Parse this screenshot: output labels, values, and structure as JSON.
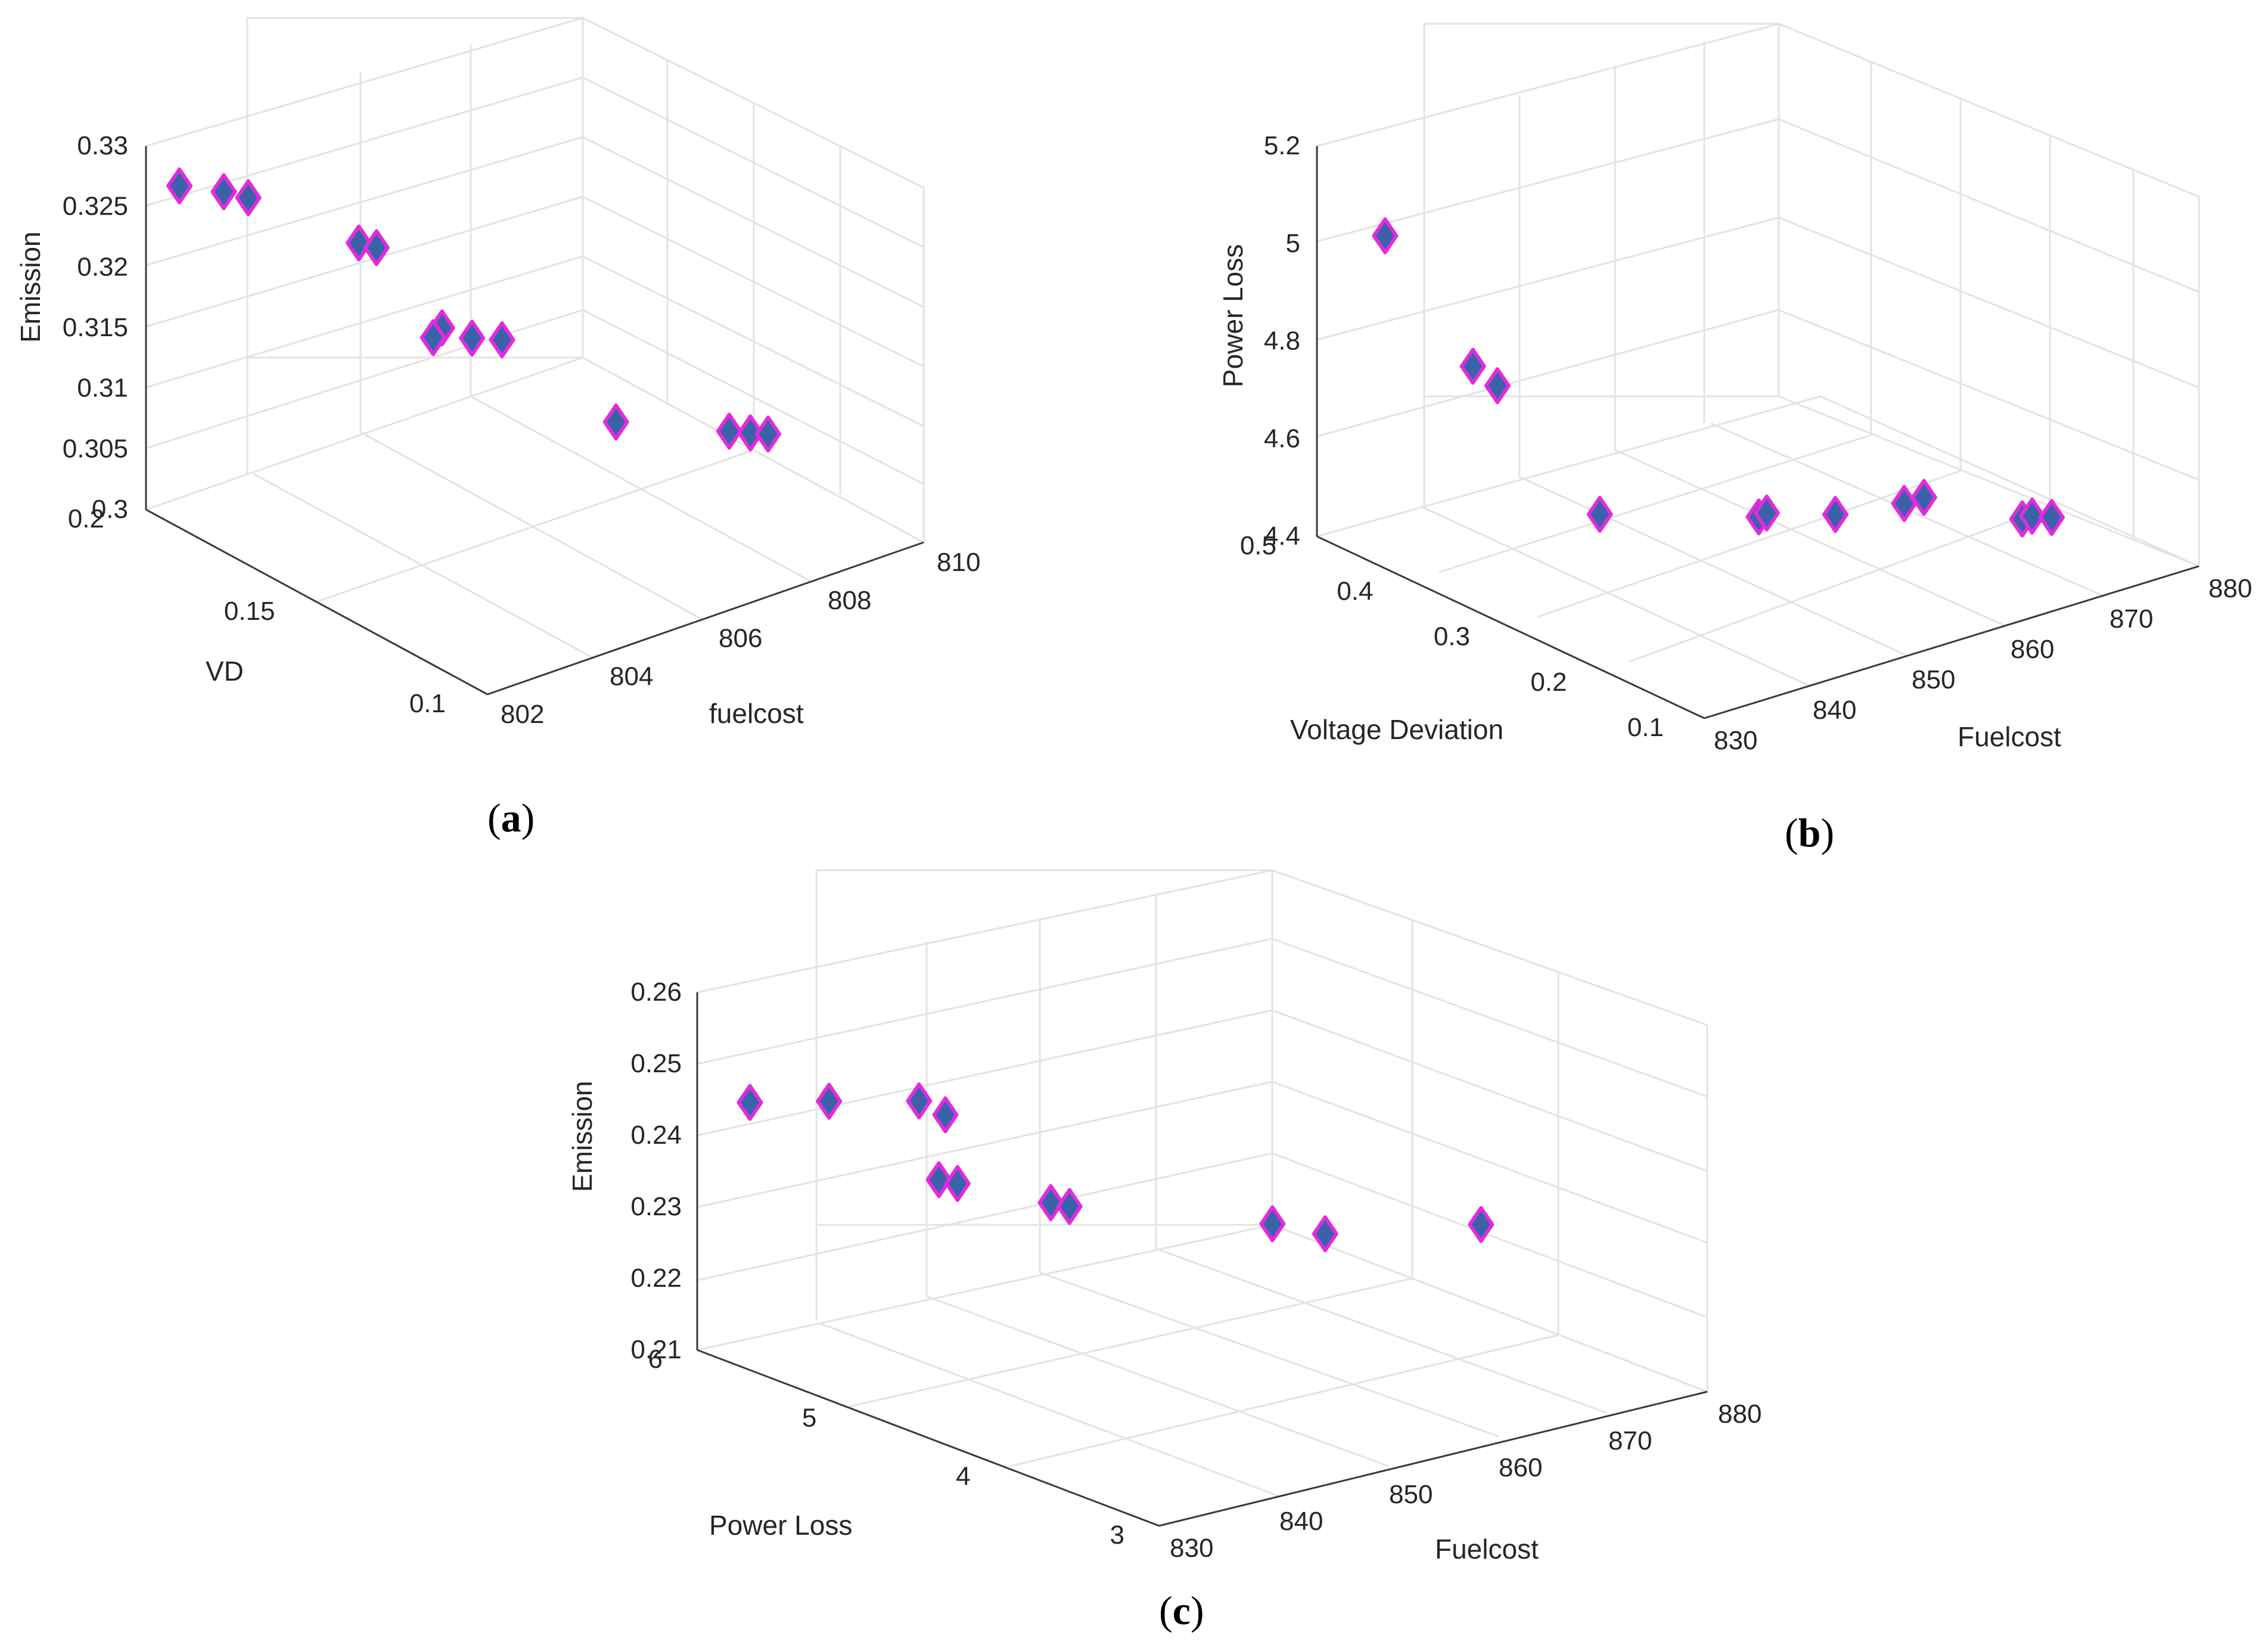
{
  "figure": {
    "marker_fill": "#3a62a8",
    "marker_edge": "#e22bde",
    "grid_color": "#e3e3e3",
    "axis_color": "#3a3a3a"
  },
  "chart_data": [
    {
      "type": "scatter",
      "panel": "a",
      "caption_open": "(",
      "caption_letter": "a",
      "caption_close": ")",
      "xlabel": "fuelcost",
      "ylabel": "VD",
      "zlabel": "Emission",
      "xlim": [
        802,
        810
      ],
      "ylim": [
        0.1,
        0.2
      ],
      "zlim": [
        0.3,
        0.33
      ],
      "x_ticks": [
        "802",
        "804",
        "806",
        "808",
        "810"
      ],
      "y_ticks": [
        "0.1",
        "0.15",
        "0.2"
      ],
      "z_ticks": [
        "0.3",
        "0.305",
        "0.31",
        "0.315",
        "0.32",
        "0.325",
        "0.33"
      ],
      "points": [
        {
          "x": 802.3,
          "y": 0.195,
          "z": 0.327
        },
        {
          "x": 802.8,
          "y": 0.19,
          "z": 0.3265
        },
        {
          "x": 803.0,
          "y": 0.186,
          "z": 0.3263
        },
        {
          "x": 804.4,
          "y": 0.176,
          "z": 0.3219
        },
        {
          "x": 804.6,
          "y": 0.174,
          "z": 0.3215
        },
        {
          "x": 805.3,
          "y": 0.166,
          "z": 0.315
        },
        {
          "x": 805.2,
          "y": 0.167,
          "z": 0.3142
        },
        {
          "x": 805.6,
          "y": 0.162,
          "z": 0.3143
        },
        {
          "x": 805.9,
          "y": 0.158,
          "z": 0.3143
        },
        {
          "x": 806.8,
          "y": 0.139,
          "z": 0.309
        },
        {
          "x": 808.0,
          "y": 0.125,
          "z": 0.3085
        },
        {
          "x": 808.2,
          "y": 0.122,
          "z": 0.3085
        },
        {
          "x": 808.4,
          "y": 0.12,
          "z": 0.3084
        }
      ]
    },
    {
      "type": "scatter",
      "panel": "b",
      "caption_open": "(",
      "caption_letter": "b",
      "caption_close": ")",
      "xlabel": "Fuelcost",
      "ylabel": "Voltage Deviation",
      "zlabel": "Power Loss",
      "xlim": [
        830,
        880
      ],
      "ylim": [
        0.1,
        0.5
      ],
      "zlim": [
        4.4,
        5.2
      ],
      "x_ticks": [
        "830",
        "840",
        "850",
        "860",
        "870",
        "880"
      ],
      "y_ticks": [
        "0.1",
        "0.2",
        "0.3",
        "0.4",
        "0.5"
      ],
      "z_ticks": [
        "4.4",
        "4.6",
        "4.8",
        "5",
        "5.2"
      ],
      "points": [
        {
          "x": 832.0,
          "y": 0.45,
          "z": 5.05
        },
        {
          "x": 835.0,
          "y": 0.39,
          "z": 4.82
        },
        {
          "x": 836.5,
          "y": 0.38,
          "z": 4.78
        },
        {
          "x": 840.0,
          "y": 0.31,
          "z": 4.56
        },
        {
          "x": 850.0,
          "y": 0.248,
          "z": 4.55
        },
        {
          "x": 851.0,
          "y": 0.25,
          "z": 4.55
        },
        {
          "x": 855.0,
          "y": 0.22,
          "z": 4.55
        },
        {
          "x": 860.0,
          "y": 0.2,
          "z": 4.56
        },
        {
          "x": 862.0,
          "y": 0.2,
          "z": 4.56
        },
        {
          "x": 869.0,
          "y": 0.17,
          "z": 4.5
        },
        {
          "x": 870.0,
          "y": 0.17,
          "z": 4.5
        },
        {
          "x": 871.0,
          "y": 0.16,
          "z": 4.5
        }
      ]
    },
    {
      "type": "scatter",
      "panel": "c",
      "caption_open": "(",
      "caption_letter": "c",
      "caption_close": ")",
      "xlabel": "Fuelcost",
      "ylabel": "Power Loss",
      "zlabel": "Emission",
      "xlim": [
        830,
        880
      ],
      "ylim": [
        3,
        6
      ],
      "zlim": [
        0.21,
        0.26
      ],
      "x_ticks": [
        "830",
        "840",
        "850",
        "860",
        "870",
        "880"
      ],
      "y_ticks": [
        "3",
        "4",
        "5",
        "6"
      ],
      "z_ticks": [
        "0.21",
        "0.22",
        "0.23",
        "0.24",
        "0.25",
        "0.26"
      ],
      "points": [
        {
          "x": 832.0,
          "y": 5.8,
          "z": 0.2455
        },
        {
          "x": 835.0,
          "y": 5.5,
          "z": 0.247
        },
        {
          "x": 839.0,
          "y": 5.2,
          "z": 0.248
        },
        {
          "x": 840.0,
          "y": 5.1,
          "z": 0.2465
        },
        {
          "x": 838.0,
          "y": 5.0,
          "z": 0.239
        },
        {
          "x": 839.0,
          "y": 4.95,
          "z": 0.2385
        },
        {
          "x": 844.0,
          "y": 4.7,
          "z": 0.236
        },
        {
          "x": 845.0,
          "y": 4.65,
          "z": 0.2355
        },
        {
          "x": 860.0,
          "y": 4.4,
          "z": 0.2295
        },
        {
          "x": 862.0,
          "y": 4.2,
          "z": 0.229
        },
        {
          "x": 872.0,
          "y": 3.9,
          "z": 0.229
        }
      ]
    }
  ]
}
